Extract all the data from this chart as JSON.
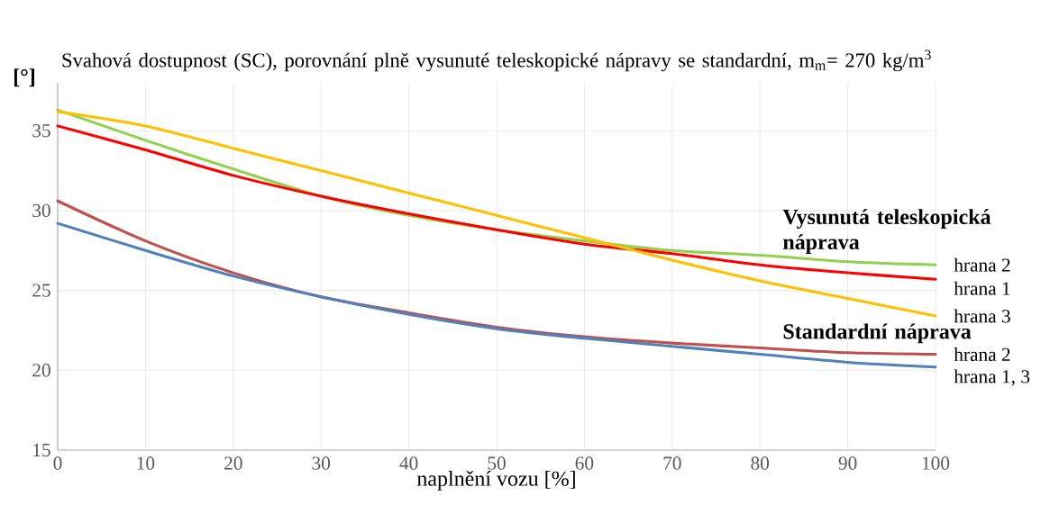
{
  "chart_data": {
    "type": "line",
    "title": "Svahová dostupnost (SC), porovnání plně vysunuté teleskopické nápravy se standardní, m$_{m}$= 270 kg/m$^{3}$",
    "xlabel": "naplnění vozu [%]",
    "ylabel": "[°]",
    "x": [
      0,
      10,
      20,
      30,
      40,
      50,
      60,
      70,
      80,
      90,
      100
    ],
    "series": [
      {
        "name": "hrana 2",
        "color": "#92d050",
        "values": [
          36.3,
          34.4,
          32.6,
          30.9,
          29.7,
          28.8,
          28.1,
          27.5,
          27.2,
          26.8,
          26.6
        ]
      },
      {
        "name": "hrana 1",
        "color": "#ff0000",
        "values": [
          35.3,
          33.8,
          32.2,
          30.9,
          29.8,
          28.8,
          27.9,
          27.3,
          26.6,
          26.1,
          25.7
        ]
      },
      {
        "name": "hrana 3",
        "color": "#ffc000",
        "values": [
          36.2,
          35.3,
          33.9,
          32.5,
          31.1,
          29.7,
          28.3,
          26.9,
          25.6,
          24.5,
          23.4
        ]
      },
      {
        "name": "hrana 2",
        "color": "#c0504d",
        "values": [
          30.6,
          28.1,
          26.1,
          24.6,
          23.6,
          22.7,
          22.1,
          21.7,
          21.4,
          21.1,
          21.0
        ]
      },
      {
        "name": "hrana 1, 3",
        "color": "#4f81bd",
        "values": [
          29.2,
          27.5,
          25.9,
          24.6,
          23.5,
          22.6,
          22.0,
          21.5,
          21.0,
          20.5,
          20.2
        ]
      }
    ],
    "annotations": [
      "Vysunutá teleskopická náprava",
      "Standardní náprava"
    ],
    "xlim": [
      0,
      100
    ],
    "ylim": [
      15,
      38
    ],
    "xticks": [
      0,
      10,
      20,
      30,
      40,
      50,
      60,
      70,
      80,
      90,
      100
    ],
    "yticks": [
      15,
      20,
      25,
      30,
      35
    ],
    "grid": true,
    "line_style": "solid",
    "marker": "none"
  }
}
